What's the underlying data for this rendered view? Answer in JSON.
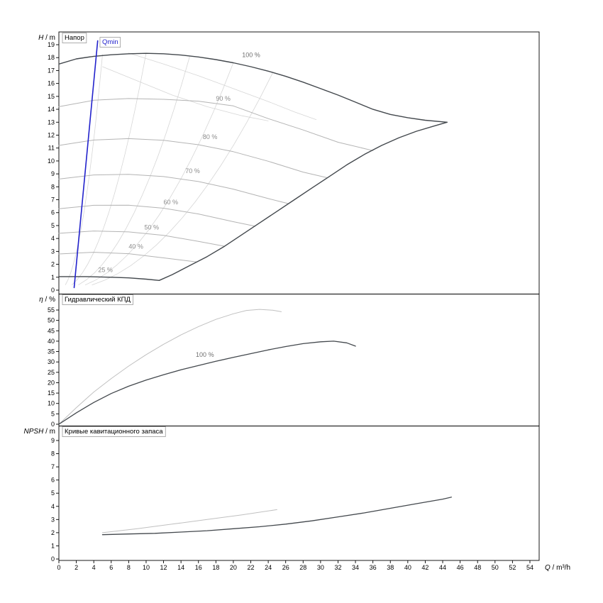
{
  "window": {
    "background": "#ffffff",
    "axis_color": "#000000"
  },
  "xaxis": {
    "var": "Q",
    "unit": "m³/h",
    "min": 0,
    "max": 54,
    "tick_step": 2
  },
  "chart_data": [
    {
      "id": "head",
      "type": "line",
      "title": "Напор",
      "yaxis": {
        "var": "H",
        "unit": "m",
        "min": 0,
        "max": 19,
        "tick_step": 1
      },
      "parabolas": {
        "color": "#d6d6d6",
        "width": 0.8,
        "items": [
          {
            "k": 0.73,
            "q_end": 5.0
          },
          {
            "k": 0.1835,
            "q_end": 10.0
          },
          {
            "k": 0.0804,
            "q_end": 15.0
          },
          {
            "k": 0.044,
            "q_end": 20.0
          },
          {
            "k": 0.028,
            "q_end": 24.5
          }
        ]
      },
      "series": [
        {
          "name": "mesh-arc-1",
          "color": "#d6d6d6",
          "width": 0.8,
          "points": [
            [
              5,
              17.3
            ],
            [
              9,
              16.2
            ],
            [
              13,
              15.1
            ],
            [
              17,
              14.2
            ],
            [
              21,
              13.5
            ],
            [
              24,
              13.1
            ]
          ]
        },
        {
          "name": "mesh-arc-2",
          "color": "#d6d6d6",
          "width": 0.8,
          "points": [
            [
              8,
              18.35
            ],
            [
              12,
              17.5
            ],
            [
              16,
              16.6
            ],
            [
              20,
              15.6
            ],
            [
              24,
              14.6
            ],
            [
              27,
              13.8
            ],
            [
              29.5,
              13.2
            ]
          ]
        },
        {
          "name": "speed-90",
          "color": "#b4b4b4",
          "width": 1,
          "points": [
            [
              0,
              14.2
            ],
            [
              4,
              14.7
            ],
            [
              8,
              14.83
            ],
            [
              12,
              14.77
            ],
            [
              16,
              14.63
            ],
            [
              20,
              14.26
            ],
            [
              24,
              13.28
            ],
            [
              28,
              12.4
            ],
            [
              32,
              11.45
            ],
            [
              36,
              10.8
            ]
          ]
        },
        {
          "name": "speed-80",
          "color": "#b4b4b4",
          "width": 1,
          "points": [
            [
              0,
              11.2
            ],
            [
              4,
              11.62
            ],
            [
              8,
              11.73
            ],
            [
              12,
              11.6
            ],
            [
              16,
              11.26
            ],
            [
              20,
              10.72
            ],
            [
              24,
              9.98
            ],
            [
              28,
              9.14
            ],
            [
              30.8,
              8.7
            ]
          ]
        },
        {
          "name": "speed-70",
          "color": "#b4b4b4",
          "width": 1,
          "points": [
            [
              0,
              8.6
            ],
            [
              4,
              8.92
            ],
            [
              8,
              8.97
            ],
            [
              12,
              8.79
            ],
            [
              16,
              8.41
            ],
            [
              20,
              7.82
            ],
            [
              24,
              7.09
            ],
            [
              26.3,
              6.7
            ]
          ]
        },
        {
          "name": "speed-60",
          "color": "#b4b4b4",
          "width": 1,
          "points": [
            [
              0,
              6.3
            ],
            [
              4,
              6.57
            ],
            [
              8,
              6.58
            ],
            [
              12,
              6.34
            ],
            [
              16,
              5.9
            ],
            [
              20,
              5.3
            ],
            [
              22.5,
              4.95
            ]
          ]
        },
        {
          "name": "speed-50",
          "color": "#b4b4b4",
          "width": 1,
          "points": [
            [
              0,
              4.4
            ],
            [
              4,
              4.58
            ],
            [
              8,
              4.51
            ],
            [
              12,
              4.24
            ],
            [
              16,
              3.78
            ],
            [
              19,
              3.4
            ]
          ]
        },
        {
          "name": "speed-40",
          "color": "#b4b4b4",
          "width": 1,
          "points": [
            [
              0,
              2.8
            ],
            [
              4,
              2.93
            ],
            [
              8,
              2.82
            ],
            [
              12,
              2.5
            ],
            [
              15.8,
              2.18
            ]
          ]
        },
        {
          "name": "envelope-top-100",
          "color": "#43484d",
          "width": 1.4,
          "points": [
            [
              0,
              17.5
            ],
            [
              2,
              17.9
            ],
            [
              4,
              18.1
            ],
            [
              6,
              18.22
            ],
            [
              8,
              18.3
            ],
            [
              10,
              18.33
            ],
            [
              12,
              18.3
            ],
            [
              14,
              18.2
            ],
            [
              16,
              18.05
            ],
            [
              18,
              17.85
            ],
            [
              20,
              17.6
            ],
            [
              22,
              17.3
            ],
            [
              24,
              16.95
            ],
            [
              26,
              16.55
            ],
            [
              28,
              16.1
            ],
            [
              30,
              15.6
            ],
            [
              32,
              15.1
            ],
            [
              34,
              14.55
            ],
            [
              36,
              14.0
            ],
            [
              38,
              13.6
            ],
            [
              40,
              13.35
            ],
            [
              42,
              13.15
            ],
            [
              44.5,
              13.0
            ]
          ]
        },
        {
          "name": "envelope-bottom-25",
          "color": "#43484d",
          "width": 1.4,
          "points": [
            [
              0,
              1.05
            ],
            [
              3,
              1.05
            ],
            [
              6,
              1.0
            ],
            [
              8,
              0.95
            ],
            [
              10,
              0.85
            ],
            [
              11.5,
              0.75
            ]
          ]
        },
        {
          "name": "envelope-right-max",
          "color": "#43484d",
          "width": 1.4,
          "points": [
            [
              11.5,
              0.75
            ],
            [
              13,
              1.2
            ],
            [
              15,
              1.9
            ],
            [
              17,
              2.6
            ],
            [
              19,
              3.4
            ],
            [
              21,
              4.3
            ],
            [
              23,
              5.2
            ],
            [
              25,
              6.1
            ],
            [
              27,
              7.0
            ],
            [
              29,
              7.9
            ],
            [
              31,
              8.8
            ],
            [
              33,
              9.7
            ],
            [
              35,
              10.5
            ],
            [
              37,
              11.2
            ],
            [
              39,
              11.8
            ],
            [
              41,
              12.3
            ],
            [
              43,
              12.7
            ],
            [
              44.5,
              13.0
            ]
          ]
        },
        {
          "name": "qmin-line",
          "color": "#2222cc",
          "width": 1.6,
          "points": [
            [
              1.75,
              0.2
            ],
            [
              4.45,
              19.3
            ]
          ]
        }
      ],
      "labels": [
        {
          "text": "100 %",
          "q": 21.0,
          "v": 18.05,
          "color": "#707070"
        },
        {
          "text": "90 %",
          "q": 18.0,
          "v": 14.65,
          "color": "#8c8c8c"
        },
        {
          "text": "80 %",
          "q": 16.5,
          "v": 11.7,
          "color": "#8c8c8c"
        },
        {
          "text": "70 %",
          "q": 14.5,
          "v": 9.05,
          "color": "#8c8c8c"
        },
        {
          "text": "60 %",
          "q": 12.0,
          "v": 6.65,
          "color": "#8c8c8c"
        },
        {
          "text": "50 %",
          "q": 9.8,
          "v": 4.7,
          "color": "#8c8c8c"
        },
        {
          "text": "40 %",
          "q": 8.0,
          "v": 3.2,
          "color": "#8c8c8c"
        },
        {
          "text": "25 %",
          "q": 4.5,
          "v": 1.4,
          "color": "#8c8c8c"
        }
      ],
      "boxed_labels": [
        {
          "text": "Qmin",
          "q": 4.55,
          "v": 19.6,
          "color": "#2222cc"
        }
      ]
    },
    {
      "id": "eff",
      "type": "line",
      "title": "Гидравлический КПД",
      "yaxis": {
        "var": "η",
        "unit": "%",
        "min": 0,
        "max": 55,
        "tick_step": 5
      },
      "series": [
        {
          "name": "eff-reference",
          "color": "#c0c0c0",
          "width": 1,
          "points": [
            [
              0,
              0
            ],
            [
              2,
              8
            ],
            [
              4,
              15.5
            ],
            [
              6,
              22
            ],
            [
              8,
              28
            ],
            [
              10,
              33.5
            ],
            [
              12,
              38.5
            ],
            [
              14,
              43
            ],
            [
              16,
              47
            ],
            [
              18,
              50.5
            ],
            [
              20,
              53.2
            ],
            [
              21.5,
              54.8
            ],
            [
              23,
              55.3
            ],
            [
              24.5,
              54.9
            ],
            [
              25.5,
              54.2
            ]
          ]
        },
        {
          "name": "eff-100",
          "color": "#43484d",
          "width": 1.3,
          "points": [
            [
              0,
              0
            ],
            [
              2,
              5.5
            ],
            [
              4,
              10.5
            ],
            [
              6,
              14.8
            ],
            [
              8,
              18.3
            ],
            [
              10,
              21.3
            ],
            [
              12,
              23.8
            ],
            [
              14,
              26.2
            ],
            [
              16,
              28.3
            ],
            [
              18,
              30.3
            ],
            [
              20,
              32.2
            ],
            [
              22,
              34.0
            ],
            [
              24,
              35.8
            ],
            [
              26,
              37.4
            ],
            [
              28,
              38.8
            ],
            [
              30,
              39.7
            ],
            [
              31.5,
              40.0
            ],
            [
              33,
              39.2
            ],
            [
              34,
              37.6
            ]
          ]
        }
      ],
      "labels": [
        {
          "text": "100 %",
          "q": 15.7,
          "v": 32.5,
          "color": "#707070"
        }
      ],
      "boxed_labels": []
    },
    {
      "id": "npsh",
      "type": "line",
      "title": "Кривые кавитационного запаса",
      "yaxis": {
        "var": "NPSH",
        "unit": "m",
        "min": 0,
        "max": 9,
        "tick_step": 1
      },
      "series": [
        {
          "name": "npsh-reference",
          "color": "#c0c0c0",
          "width": 1,
          "points": [
            [
              5,
              2.0
            ],
            [
              9,
              2.3
            ],
            [
              13,
              2.65
            ],
            [
              17,
              3.0
            ],
            [
              21,
              3.35
            ],
            [
              25,
              3.75
            ]
          ]
        },
        {
          "name": "npsh-100",
          "color": "#43484d",
          "width": 1.3,
          "points": [
            [
              5,
              1.85
            ],
            [
              8,
              1.9
            ],
            [
              11,
              1.95
            ],
            [
              14,
              2.05
            ],
            [
              17,
              2.15
            ],
            [
              20,
              2.3
            ],
            [
              23,
              2.45
            ],
            [
              26,
              2.65
            ],
            [
              29,
              2.9
            ],
            [
              32,
              3.2
            ],
            [
              35,
              3.5
            ],
            [
              38,
              3.85
            ],
            [
              41,
              4.2
            ],
            [
              44,
              4.55
            ],
            [
              45,
              4.7
            ]
          ]
        }
      ],
      "labels": [],
      "boxed_labels": []
    }
  ]
}
